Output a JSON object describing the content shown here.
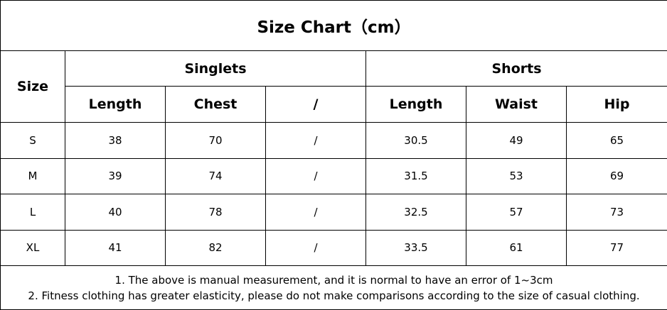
{
  "title": "Size Chart（cm）",
  "table": {
    "size_header": "Size",
    "groups": [
      "Singlets",
      "Shorts"
    ],
    "columns": [
      "Length",
      "Chest",
      "/",
      "Length",
      "Waist",
      "Hip"
    ],
    "rows": [
      [
        "S",
        "38",
        "70",
        "/",
        "30.5",
        "49",
        "65"
      ],
      [
        "M",
        "39",
        "74",
        "/",
        "31.5",
        "53",
        "69"
      ],
      [
        "L",
        "40",
        "78",
        "/",
        "32.5",
        "57",
        "73"
      ],
      [
        "XL",
        "41",
        "82",
        "/",
        "33.5",
        "61",
        "77"
      ]
    ]
  },
  "notes": [
    "1. The above is manual measurement, and it is normal to have an error of 1~3cm",
    "2. Fitness clothing has greater elasticity, please do not make comparisons according to the size of casual clothing."
  ]
}
